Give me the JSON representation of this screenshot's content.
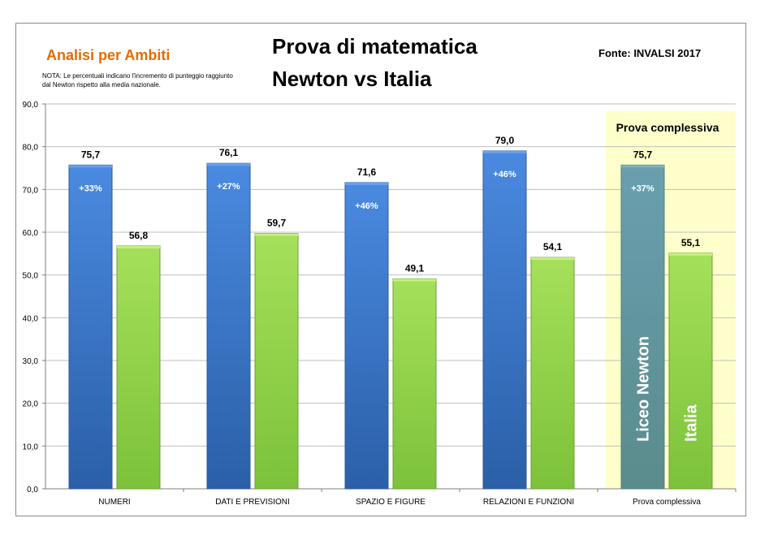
{
  "header": {
    "subtitle": "Analisi per Ambiti",
    "note": "NOTA: Le percentuali indicano l'incremento di punteggio raggiunto dal Newton rispetto alla media nazionale.",
    "title_line1": "Prova di matematica",
    "title_line2": "Newton vs Italia",
    "source": "Fonte: INVALSI 2017"
  },
  "colors": {
    "newton": "#3a78d4",
    "italia": "#92d050",
    "highlight_bg": "#ffffcc",
    "newton_highlight": "#5f9ea0"
  },
  "chart_data": {
    "type": "bar",
    "categories": [
      "NUMERI",
      "DATI E PREVISIONI",
      "SPAZIO E FIGURE",
      "RELAZIONI E FUNZIONI",
      "Prova complessiva"
    ],
    "series": [
      {
        "name": "Liceo Newton",
        "values": [
          75.7,
          76.1,
          71.6,
          79.0,
          75.7
        ],
        "value_labels": [
          "75,7",
          "76,1",
          "71,6",
          "79,0",
          "75,7"
        ]
      },
      {
        "name": "Italia",
        "values": [
          56.8,
          59.7,
          49.1,
          54.1,
          55.1
        ],
        "value_labels": [
          "56,8",
          "59,7",
          "49,1",
          "54,1",
          "55,1"
        ]
      }
    ],
    "increments": [
      "+33%",
      "+27%",
      "+46%",
      "+46%",
      "+37%"
    ],
    "highlight_label": "Prova complessiva",
    "highlight_category_index": 4,
    "ylim": [
      0,
      90
    ],
    "yticks": [
      "0,0",
      "10,0",
      "20,0",
      "30,0",
      "40,0",
      "50,0",
      "60,0",
      "70,0",
      "80,0",
      "90,0"
    ],
    "grid": true,
    "legend": "in-bar labels on last category"
  }
}
